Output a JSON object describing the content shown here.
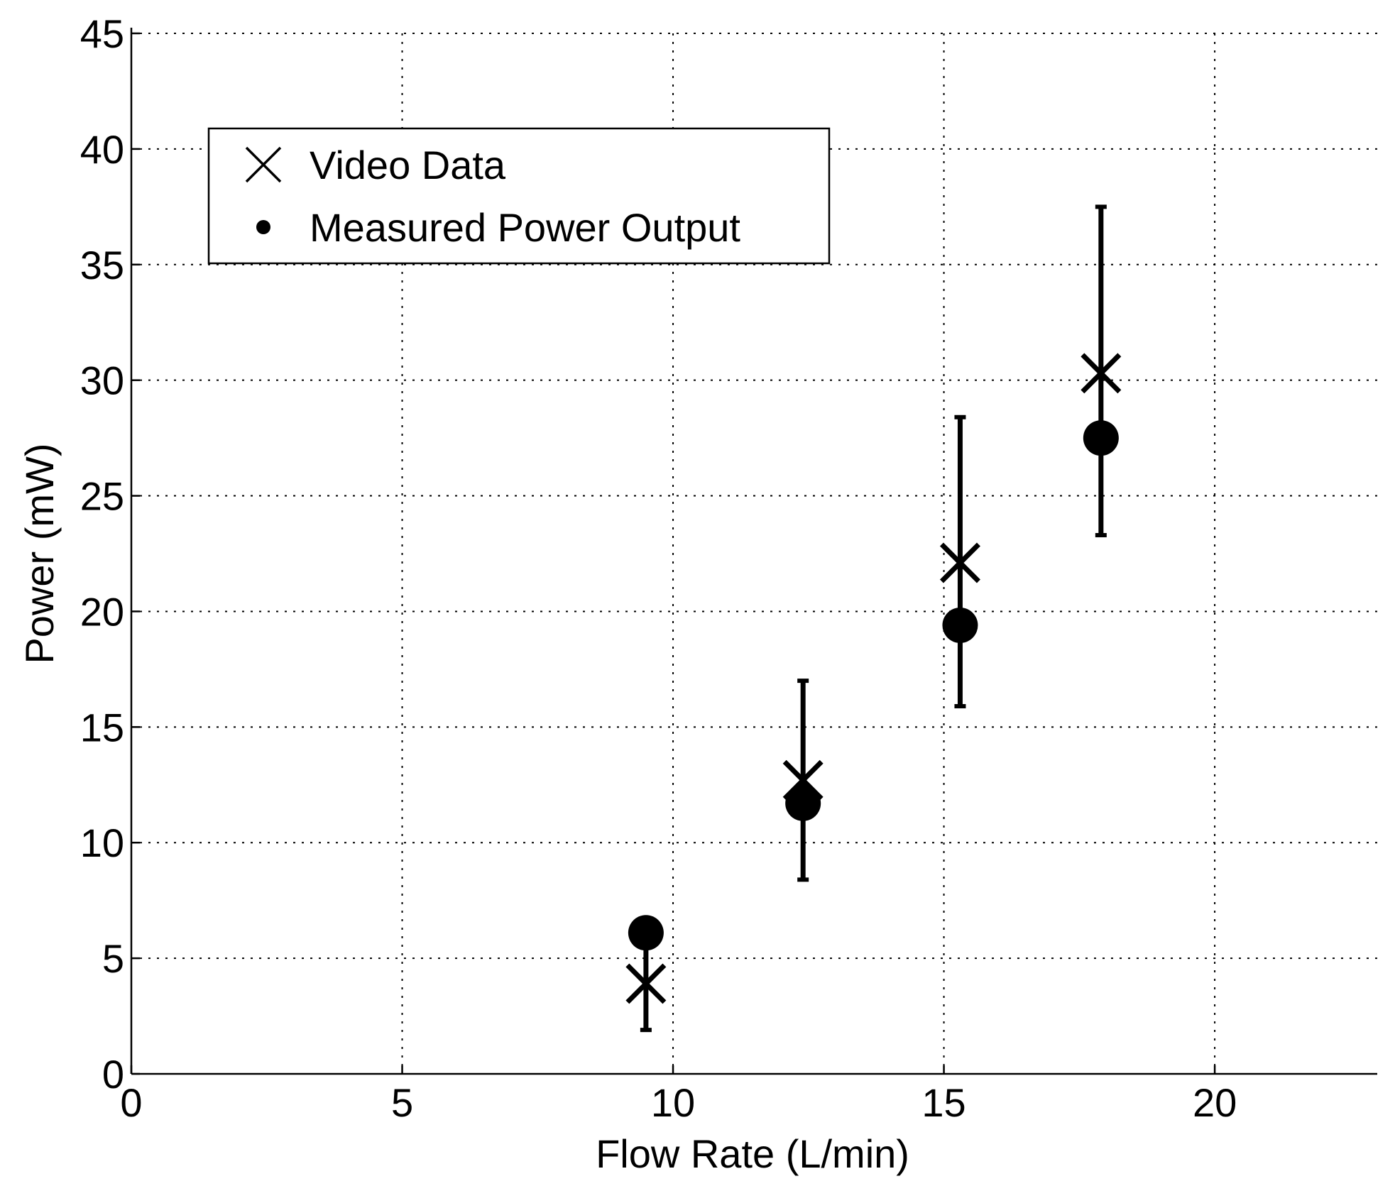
{
  "chart_data": {
    "type": "scatter",
    "title": "",
    "xlabel": "Flow Rate (L/min)",
    "ylabel": "Power (mW)",
    "xlim": [
      0,
      23
    ],
    "ylim": [
      0,
      45
    ],
    "xticks": [
      0,
      5,
      10,
      15,
      20
    ],
    "yticks": [
      0,
      5,
      10,
      15,
      20,
      25,
      30,
      35,
      40,
      45
    ],
    "grid": true,
    "legend_position": "top-left",
    "series": [
      {
        "name": "Video Data",
        "marker": "x",
        "color": "#000000",
        "x": [
          9.5,
          12.4,
          15.3,
          17.9
        ],
        "y": [
          3.9,
          12.7,
          22.1,
          30.3
        ]
      },
      {
        "name": "Measured Power Output",
        "marker": "filled-circle",
        "color": "#000000",
        "x": [
          9.5,
          12.4,
          15.3,
          17.9
        ],
        "y": [
          6.1,
          11.7,
          19.4,
          27.5
        ],
        "error_low": [
          1.9,
          8.4,
          15.9,
          23.3
        ],
        "error_high": [
          5.5,
          17.0,
          28.4,
          37.5
        ]
      }
    ]
  }
}
